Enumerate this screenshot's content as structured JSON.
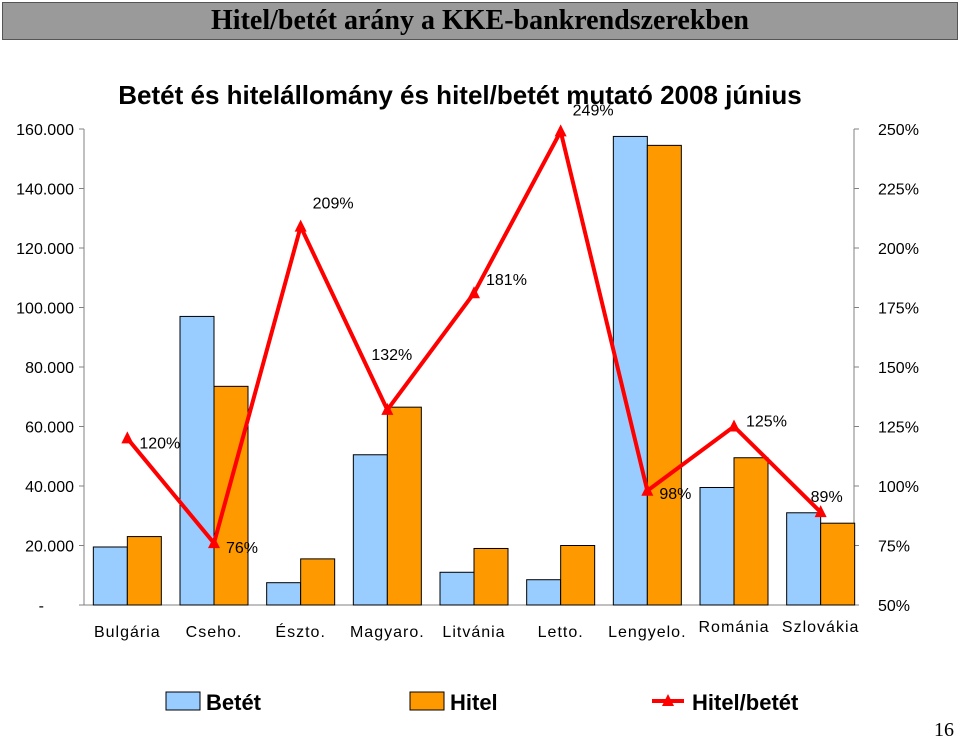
{
  "header": {
    "title": "Hitel/betét arány a KKE-bankrendszerekben"
  },
  "page_number": "16",
  "chart_data": {
    "type": "bar",
    "title": "Betét és hitelállomány és hitel/betét mutató 2008 június",
    "categories": [
      "Bulgária",
      "Cseho.",
      "Észto.",
      "Magyaro.",
      "Litvánia",
      "Letto.",
      "Lengyelo.",
      "Románia",
      "Szlovákia"
    ],
    "series": [
      {
        "name": "Betét",
        "type": "bar",
        "color": "#99ccff",
        "values": [
          19500,
          97000,
          7500,
          50500,
          11000,
          8500,
          157500,
          39500,
          31000
        ]
      },
      {
        "name": "Hitel",
        "type": "bar",
        "color": "#ff9900",
        "values": [
          23000,
          73500,
          15500,
          66500,
          19000,
          20000,
          154500,
          49500,
          27500
        ]
      },
      {
        "name": "Hitel/betét",
        "type": "line",
        "axis": "right",
        "color": "#ff0000",
        "values": [
          120,
          76,
          209,
          132,
          181,
          249,
          98,
          125,
          89
        ]
      }
    ],
    "data_labels": [
      "120%",
      "76%",
      "209%",
      "132%",
      "181%",
      "249%",
      "98%",
      "125%",
      "89%"
    ],
    "y_left": {
      "ylim": [
        0,
        160000
      ],
      "ticks": [
        "-",
        "20.000",
        "40.000",
        "60.000",
        "80.000",
        "100.000",
        "120.000",
        "140.000",
        "160.000"
      ]
    },
    "y_right": {
      "ylim": [
        50,
        250
      ],
      "ticks": [
        "50%",
        "75%",
        "100%",
        "125%",
        "150%",
        "175%",
        "200%",
        "225%",
        "250%"
      ]
    },
    "legend": {
      "position": "bottom",
      "items": [
        "Betét",
        "Hitel",
        "Hitel/betét"
      ]
    },
    "grid": false
  }
}
